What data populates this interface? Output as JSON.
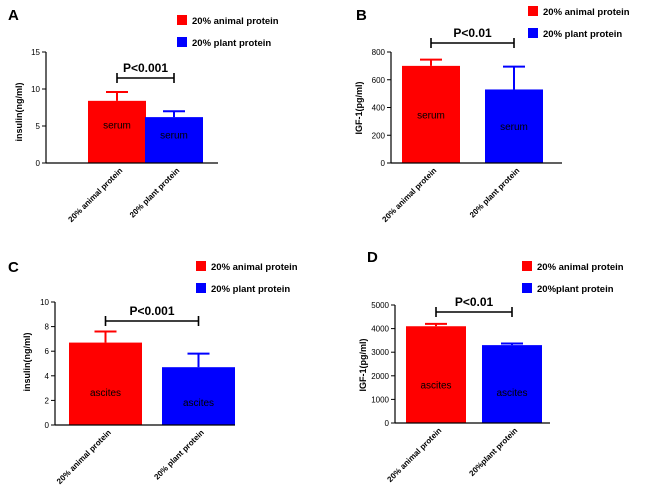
{
  "chart_data": [
    {
      "type": "bar",
      "panel": "A",
      "categories": [
        "20% animal protein",
        "20% plant protein"
      ],
      "values": [
        8.4,
        6.2
      ],
      "errors": [
        1.2,
        0.8
      ],
      "bar_labels": [
        "serum",
        "serum"
      ],
      "ylabel": "insulin(ng/ml)",
      "ylim": [
        0,
        15
      ],
      "yticks": [
        0,
        5,
        10,
        15
      ],
      "legend": [
        "20% animal protein",
        "20% plant protein"
      ],
      "colors": [
        "#ff0000",
        "#0000ff"
      ],
      "significance": "P<0.001"
    },
    {
      "type": "bar",
      "panel": "B",
      "categories": [
        "20% animal protein",
        "20% plant protein"
      ],
      "values": [
        700,
        530
      ],
      "errors": [
        45,
        165
      ],
      "bar_labels": [
        "serum",
        "serum"
      ],
      "ylabel": "IGF-1(pg/ml)",
      "ylim": [
        0,
        800
      ],
      "yticks": [
        0,
        200,
        400,
        600,
        800
      ],
      "legend": [
        "20% animal protein",
        "20% plant protein"
      ],
      "colors": [
        "#ff0000",
        "#0000ff"
      ],
      "significance": "P<0.01"
    },
    {
      "type": "bar",
      "panel": "C",
      "categories": [
        "20% animal protein",
        "20% plant protein"
      ],
      "values": [
        6.7,
        4.7
      ],
      "errors": [
        0.9,
        1.1
      ],
      "bar_labels": [
        "ascites",
        "ascites"
      ],
      "ylabel": "insulin(ng/ml)",
      "ylim": [
        0,
        10
      ],
      "yticks": [
        0,
        2,
        4,
        6,
        8,
        10
      ],
      "legend": [
        "20% animal protein",
        "20% plant protein"
      ],
      "colors": [
        "#ff0000",
        "#0000ff"
      ],
      "significance": "P<0.001"
    },
    {
      "type": "bar",
      "panel": "D",
      "categories": [
        "20% animal protein",
        "20%plant protein"
      ],
      "values": [
        4100,
        3300
      ],
      "errors": [
        100,
        70
      ],
      "bar_labels": [
        "ascites",
        "ascites"
      ],
      "ylabel": "IGF-1(pg/ml)",
      "ylim": [
        0,
        5000
      ],
      "yticks": [
        0,
        1000,
        2000,
        3000,
        4000,
        5000
      ],
      "legend": [
        "20% animal protein",
        "20%plant protein"
      ],
      "colors": [
        "#ff0000",
        "#0000ff"
      ],
      "significance": "P<0.01"
    }
  ]
}
